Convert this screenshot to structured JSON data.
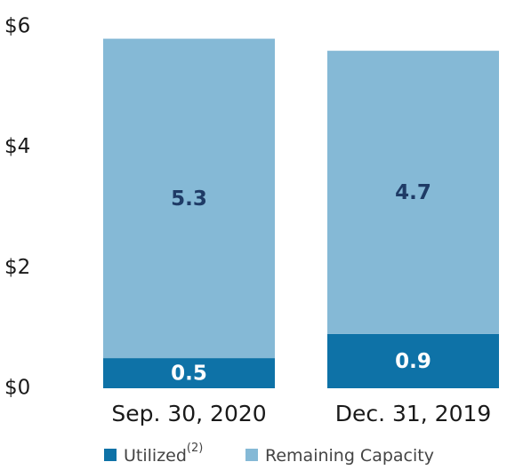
{
  "chart_data": {
    "type": "stacked_bar",
    "categories": [
      "Sep. 30, 2020",
      "Dec. 31, 2019"
    ],
    "series": [
      {
        "name": "Utilized",
        "footnote": "(2)",
        "color": "#0e72a7",
        "label_color": "#ffffff",
        "values": [
          0.5,
          0.9
        ]
      },
      {
        "name": "Remaining Capacity",
        "color": "#85b9d6",
        "label_color": "#1f3b66",
        "values": [
          5.3,
          4.7
        ]
      }
    ],
    "ylim": [
      0,
      6
    ],
    "yticks": [
      {
        "value": 0,
        "label": "$0"
      },
      {
        "value": 2,
        "label": "$2"
      },
      {
        "value": 4,
        "label": "$4"
      },
      {
        "value": 6,
        "label": "$6"
      }
    ],
    "grid": false,
    "legend": "bottom"
  }
}
